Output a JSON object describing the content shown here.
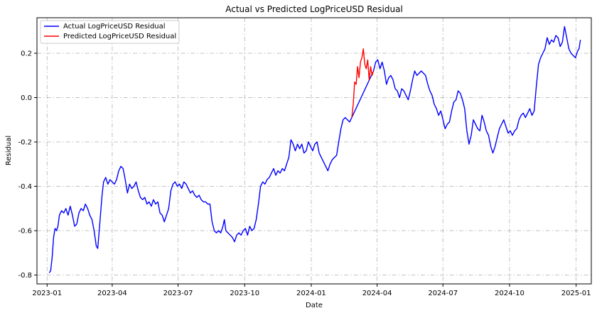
{
  "chart_data": {
    "type": "line",
    "title": "Actual vs Predicted LogPriceUSD Residual",
    "xlabel": "Date",
    "ylabel": "Residual",
    "xlim": [
      "2022-12-18",
      "2025-01-22"
    ],
    "ylim": [
      -0.84,
      0.36
    ],
    "grid": true,
    "legend_position": "upper-left",
    "x_ticks": [
      "2023-01",
      "2023-04",
      "2023-07",
      "2023-10",
      "2024-01",
      "2024-04",
      "2024-07",
      "2024-10",
      "2025-01"
    ],
    "y_ticks": [
      -0.8,
      -0.6,
      -0.4,
      -0.2,
      0.0,
      0.2
    ],
    "series": [
      {
        "name": "Actual LogPriceUSD Residual",
        "color": "#0000ff",
        "points": [
          [
            "2023-01-04",
            -0.79
          ],
          [
            "2023-01-06",
            -0.78
          ],
          [
            "2023-01-08",
            -0.72
          ],
          [
            "2023-01-10",
            -0.63
          ],
          [
            "2023-01-12",
            -0.59
          ],
          [
            "2023-01-14",
            -0.6
          ],
          [
            "2023-01-16",
            -0.58
          ],
          [
            "2023-01-18",
            -0.53
          ],
          [
            "2023-01-21",
            -0.51
          ],
          [
            "2023-01-24",
            -0.52
          ],
          [
            "2023-01-27",
            -0.5
          ],
          [
            "2023-01-30",
            -0.53
          ],
          [
            "2023-02-02",
            -0.49
          ],
          [
            "2023-02-05",
            -0.53
          ],
          [
            "2023-02-08",
            -0.58
          ],
          [
            "2023-02-11",
            -0.57
          ],
          [
            "2023-02-14",
            -0.52
          ],
          [
            "2023-02-17",
            -0.5
          ],
          [
            "2023-02-20",
            -0.51
          ],
          [
            "2023-02-23",
            -0.48
          ],
          [
            "2023-02-26",
            -0.5
          ],
          [
            "2023-03-01",
            -0.53
          ],
          [
            "2023-03-04",
            -0.55
          ],
          [
            "2023-03-07",
            -0.6
          ],
          [
            "2023-03-10",
            -0.67
          ],
          [
            "2023-03-12",
            -0.68
          ],
          [
            "2023-03-14",
            -0.6
          ],
          [
            "2023-03-16",
            -0.52
          ],
          [
            "2023-03-18",
            -0.44
          ],
          [
            "2023-03-20",
            -0.38
          ],
          [
            "2023-03-23",
            -0.36
          ],
          [
            "2023-03-26",
            -0.39
          ],
          [
            "2023-03-29",
            -0.37
          ],
          [
            "2023-04-01",
            -0.38
          ],
          [
            "2023-04-04",
            -0.39
          ],
          [
            "2023-04-07",
            -0.37
          ],
          [
            "2023-04-10",
            -0.33
          ],
          [
            "2023-04-13",
            -0.31
          ],
          [
            "2023-04-16",
            -0.32
          ],
          [
            "2023-04-19",
            -0.37
          ],
          [
            "2023-04-22",
            -0.43
          ],
          [
            "2023-04-25",
            -0.39
          ],
          [
            "2023-04-28",
            -0.41
          ],
          [
            "2023-05-01",
            -0.4
          ],
          [
            "2023-05-04",
            -0.38
          ],
          [
            "2023-05-07",
            -0.42
          ],
          [
            "2023-05-10",
            -0.45
          ],
          [
            "2023-05-13",
            -0.46
          ],
          [
            "2023-05-16",
            -0.45
          ],
          [
            "2023-05-19",
            -0.48
          ],
          [
            "2023-05-22",
            -0.47
          ],
          [
            "2023-05-25",
            -0.49
          ],
          [
            "2023-05-28",
            -0.46
          ],
          [
            "2023-05-31",
            -0.48
          ],
          [
            "2023-06-03",
            -0.47
          ],
          [
            "2023-06-06",
            -0.52
          ],
          [
            "2023-06-09",
            -0.53
          ],
          [
            "2023-06-12",
            -0.56
          ],
          [
            "2023-06-15",
            -0.53
          ],
          [
            "2023-06-18",
            -0.5
          ],
          [
            "2023-06-21",
            -0.42
          ],
          [
            "2023-06-24",
            -0.39
          ],
          [
            "2023-06-27",
            -0.38
          ],
          [
            "2023-06-30",
            -0.4
          ],
          [
            "2023-07-03",
            -0.39
          ],
          [
            "2023-07-06",
            -0.41
          ],
          [
            "2023-07-09",
            -0.38
          ],
          [
            "2023-07-12",
            -0.39
          ],
          [
            "2023-07-15",
            -0.41
          ],
          [
            "2023-07-18",
            -0.43
          ],
          [
            "2023-07-21",
            -0.42
          ],
          [
            "2023-07-24",
            -0.44
          ],
          [
            "2023-07-27",
            -0.45
          ],
          [
            "2023-07-30",
            -0.44
          ],
          [
            "2023-08-02",
            -0.46
          ],
          [
            "2023-08-05",
            -0.47
          ],
          [
            "2023-08-08",
            -0.47
          ],
          [
            "2023-08-11",
            -0.48
          ],
          [
            "2023-08-14",
            -0.48
          ],
          [
            "2023-08-17",
            -0.56
          ],
          [
            "2023-08-20",
            -0.6
          ],
          [
            "2023-08-23",
            -0.61
          ],
          [
            "2023-08-26",
            -0.6
          ],
          [
            "2023-08-29",
            -0.61
          ],
          [
            "2023-09-01",
            -0.58
          ],
          [
            "2023-09-03",
            -0.55
          ],
          [
            "2023-09-05",
            -0.6
          ],
          [
            "2023-09-08",
            -0.61
          ],
          [
            "2023-09-11",
            -0.62
          ],
          [
            "2023-09-14",
            -0.63
          ],
          [
            "2023-09-17",
            -0.65
          ],
          [
            "2023-09-20",
            -0.62
          ],
          [
            "2023-09-23",
            -0.61
          ],
          [
            "2023-09-26",
            -0.62
          ],
          [
            "2023-09-29",
            -0.6
          ],
          [
            "2023-10-02",
            -0.59
          ],
          [
            "2023-10-05",
            -0.62
          ],
          [
            "2023-10-08",
            -0.58
          ],
          [
            "2023-10-11",
            -0.6
          ],
          [
            "2023-10-14",
            -0.59
          ],
          [
            "2023-10-17",
            -0.55
          ],
          [
            "2023-10-20",
            -0.48
          ],
          [
            "2023-10-23",
            -0.4
          ],
          [
            "2023-10-26",
            -0.38
          ],
          [
            "2023-10-29",
            -0.39
          ],
          [
            "2023-11-01",
            -0.37
          ],
          [
            "2023-11-04",
            -0.36
          ],
          [
            "2023-11-07",
            -0.34
          ],
          [
            "2023-11-10",
            -0.32
          ],
          [
            "2023-11-13",
            -0.35
          ],
          [
            "2023-11-16",
            -0.33
          ],
          [
            "2023-11-19",
            -0.34
          ],
          [
            "2023-11-22",
            -0.32
          ],
          [
            "2023-11-25",
            -0.33
          ],
          [
            "2023-11-28",
            -0.3
          ],
          [
            "2023-12-01",
            -0.27
          ],
          [
            "2023-12-04",
            -0.19
          ],
          [
            "2023-12-07",
            -0.21
          ],
          [
            "2023-12-10",
            -0.24
          ],
          [
            "2023-12-13",
            -0.21
          ],
          [
            "2023-12-16",
            -0.23
          ],
          [
            "2023-12-19",
            -0.21
          ],
          [
            "2023-12-22",
            -0.25
          ],
          [
            "2023-12-25",
            -0.24
          ],
          [
            "2023-12-28",
            -0.2
          ],
          [
            "2023-12-31",
            -0.22
          ],
          [
            "2024-01-03",
            -0.24
          ],
          [
            "2024-01-06",
            -0.21
          ],
          [
            "2024-01-09",
            -0.2
          ],
          [
            "2024-01-12",
            -0.25
          ],
          [
            "2024-01-15",
            -0.27
          ],
          [
            "2024-01-18",
            -0.29
          ],
          [
            "2024-01-21",
            -0.31
          ],
          [
            "2024-01-24",
            -0.33
          ],
          [
            "2024-01-27",
            -0.3
          ],
          [
            "2024-01-30",
            -0.28
          ],
          [
            "2024-02-02",
            -0.27
          ],
          [
            "2024-02-05",
            -0.26
          ],
          [
            "2024-02-08",
            -0.2
          ],
          [
            "2024-02-11",
            -0.14
          ],
          [
            "2024-02-14",
            -0.1
          ],
          [
            "2024-02-17",
            -0.09
          ],
          [
            "2024-02-20",
            -0.1
          ],
          [
            "2024-02-23",
            -0.11
          ],
          [
            "2024-02-26",
            -0.09
          ],
          [
            "2024-03-27",
            0.12
          ],
          [
            "2024-03-30",
            0.16
          ],
          [
            "2024-04-02",
            0.17
          ],
          [
            "2024-04-05",
            0.13
          ],
          [
            "2024-04-08",
            0.16
          ],
          [
            "2024-04-11",
            0.12
          ],
          [
            "2024-04-14",
            0.06
          ],
          [
            "2024-04-17",
            0.09
          ],
          [
            "2024-04-20",
            0.1
          ],
          [
            "2024-04-23",
            0.08
          ],
          [
            "2024-04-26",
            0.04
          ],
          [
            "2024-04-29",
            0.03
          ],
          [
            "2024-05-02",
            0.0
          ],
          [
            "2024-05-05",
            0.04
          ],
          [
            "2024-05-08",
            0.03
          ],
          [
            "2024-05-11",
            0.01
          ],
          [
            "2024-05-14",
            -0.01
          ],
          [
            "2024-05-17",
            0.03
          ],
          [
            "2024-05-20",
            0.08
          ],
          [
            "2024-05-23",
            0.12
          ],
          [
            "2024-05-26",
            0.1
          ],
          [
            "2024-05-29",
            0.11
          ],
          [
            "2024-06-01",
            0.12
          ],
          [
            "2024-06-04",
            0.11
          ],
          [
            "2024-06-07",
            0.1
          ],
          [
            "2024-06-10",
            0.06
          ],
          [
            "2024-06-13",
            0.03
          ],
          [
            "2024-06-16",
            0.01
          ],
          [
            "2024-06-19",
            -0.03
          ],
          [
            "2024-06-22",
            -0.05
          ],
          [
            "2024-06-25",
            -0.08
          ],
          [
            "2024-06-28",
            -0.06
          ],
          [
            "2024-07-01",
            -0.1
          ],
          [
            "2024-07-04",
            -0.14
          ],
          [
            "2024-07-07",
            -0.12
          ],
          [
            "2024-07-10",
            -0.11
          ],
          [
            "2024-07-13",
            -0.06
          ],
          [
            "2024-07-16",
            -0.02
          ],
          [
            "2024-07-19",
            -0.01
          ],
          [
            "2024-07-22",
            0.03
          ],
          [
            "2024-07-25",
            0.02
          ],
          [
            "2024-07-28",
            -0.01
          ],
          [
            "2024-07-31",
            -0.05
          ],
          [
            "2024-08-03",
            -0.15
          ],
          [
            "2024-08-06",
            -0.21
          ],
          [
            "2024-08-09",
            -0.17
          ],
          [
            "2024-08-12",
            -0.1
          ],
          [
            "2024-08-15",
            -0.12
          ],
          [
            "2024-08-18",
            -0.14
          ],
          [
            "2024-08-21",
            -0.15
          ],
          [
            "2024-08-24",
            -0.08
          ],
          [
            "2024-08-27",
            -0.11
          ],
          [
            "2024-08-30",
            -0.15
          ],
          [
            "2024-09-02",
            -0.17
          ],
          [
            "2024-09-05",
            -0.22
          ],
          [
            "2024-09-08",
            -0.25
          ],
          [
            "2024-09-11",
            -0.22
          ],
          [
            "2024-09-14",
            -0.18
          ],
          [
            "2024-09-17",
            -0.14
          ],
          [
            "2024-09-20",
            -0.12
          ],
          [
            "2024-09-23",
            -0.1
          ],
          [
            "2024-09-26",
            -0.13
          ],
          [
            "2024-09-29",
            -0.16
          ],
          [
            "2024-10-02",
            -0.15
          ],
          [
            "2024-10-05",
            -0.17
          ],
          [
            "2024-10-08",
            -0.15
          ],
          [
            "2024-10-11",
            -0.14
          ],
          [
            "2024-10-14",
            -0.1
          ],
          [
            "2024-10-17",
            -0.08
          ],
          [
            "2024-10-20",
            -0.07
          ],
          [
            "2024-10-23",
            -0.09
          ],
          [
            "2024-10-26",
            -0.07
          ],
          [
            "2024-10-29",
            -0.05
          ],
          [
            "2024-11-01",
            -0.08
          ],
          [
            "2024-11-04",
            -0.06
          ],
          [
            "2024-11-07",
            0.05
          ],
          [
            "2024-11-10",
            0.15
          ],
          [
            "2024-11-13",
            0.18
          ],
          [
            "2024-11-16",
            0.2
          ],
          [
            "2024-11-19",
            0.22
          ],
          [
            "2024-11-22",
            0.27
          ],
          [
            "2024-11-25",
            0.24
          ],
          [
            "2024-11-28",
            0.26
          ],
          [
            "2024-12-01",
            0.25
          ],
          [
            "2024-12-04",
            0.28
          ],
          [
            "2024-12-07",
            0.27
          ],
          [
            "2024-12-10",
            0.23
          ],
          [
            "2024-12-13",
            0.25
          ],
          [
            "2024-12-16",
            0.32
          ],
          [
            "2024-12-19",
            0.27
          ],
          [
            "2024-12-22",
            0.22
          ],
          [
            "2024-12-25",
            0.2
          ],
          [
            "2024-12-28",
            0.19
          ],
          [
            "2024-12-31",
            0.18
          ],
          [
            "2025-01-03",
            0.21
          ],
          [
            "2025-01-05",
            0.22
          ],
          [
            "2025-01-07",
            0.26
          ]
        ]
      },
      {
        "name": "Predicted LogPriceUSD Residual",
        "color": "#ff0000",
        "points": [
          [
            "2024-02-26",
            -0.09
          ],
          [
            "2024-02-28",
            -0.03
          ],
          [
            "2024-03-01",
            0.07
          ],
          [
            "2024-03-03",
            0.06
          ],
          [
            "2024-03-05",
            0.14
          ],
          [
            "2024-03-07",
            0.09
          ],
          [
            "2024-03-09",
            0.16
          ],
          [
            "2024-03-11",
            0.18
          ],
          [
            "2024-03-13",
            0.22
          ],
          [
            "2024-03-15",
            0.15
          ],
          [
            "2024-03-17",
            0.13
          ],
          [
            "2024-03-19",
            0.17
          ],
          [
            "2024-03-21",
            0.08
          ],
          [
            "2024-03-23",
            0.14
          ],
          [
            "2024-03-25",
            0.1
          ],
          [
            "2024-03-27",
            0.12
          ]
        ]
      }
    ]
  }
}
